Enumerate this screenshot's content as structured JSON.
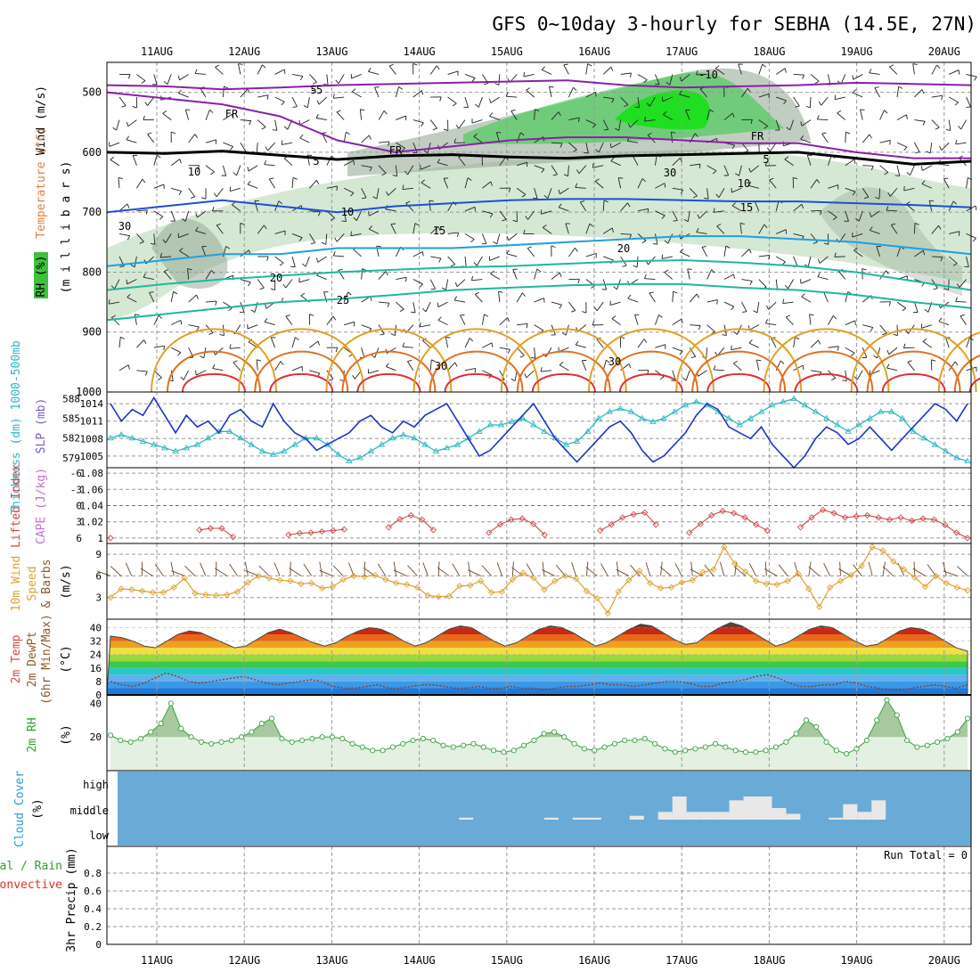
{
  "title": "GFS 0~10day 3-hourly for SEBHA (14.5E, 27N)",
  "colors": {
    "wind_line": "#000000",
    "rh_fill": "#cfe5cf",
    "rh_fill_dark": "#8fa48f",
    "rh_green": "#2ecc40",
    "temp_purple": "#8b1fa8",
    "temp_blue": "#1e4fd0",
    "temp_lightblue": "#1f9fe0",
    "temp_teal": "#1fb7a0",
    "temp_orange": "#e0a020",
    "temp_red": "#e03030",
    "slp": "#1a36c8",
    "thickness": "#2cb8c0",
    "lifted_index": "#d04a4a",
    "wind_speed": "#e0a030",
    "cloud_blue": "#6aaad6",
    "cloud_white": "#e8e8e8",
    "rh2m_fill": "#e4f0e2",
    "rh2m_line": "#3aa040"
  },
  "chart_data": [
    {
      "panel": "upper-air",
      "type": "heatmap",
      "ylabel_left": "Wind (m/s)",
      "ylabel_temperature": "Temperature (°C)",
      "ylabel_rh": "RH (%)",
      "ylabel_pressure": "(m i l l i b a r s)",
      "yticks": [
        500,
        600,
        700,
        800,
        900,
        1000
      ],
      "ylim": [
        450,
        1000
      ],
      "x_dates": [
        "11AUG",
        "12AUG",
        "13AUG",
        "14AUG",
        "15AUG",
        "16AUG",
        "17AUG",
        "18AUG",
        "19AUG",
        "20AUG"
      ],
      "contour_labels": [
        {
          "text": "5",
          "color": "purple"
        },
        {
          "text": "5",
          "color": "purple"
        },
        {
          "text": "-5",
          "color": "purple"
        },
        {
          "text": "-10",
          "color": "purple"
        },
        {
          "text": "5",
          "color": "purple"
        },
        {
          "text": "10",
          "color": "blue"
        },
        {
          "text": "10",
          "color": "blue"
        },
        {
          "text": "15",
          "color": "lightblue"
        },
        {
          "text": "15",
          "color": "lightblue"
        },
        {
          "text": "20",
          "color": "teal"
        },
        {
          "text": "20",
          "color": "teal"
        },
        {
          "text": "25",
          "color": "teal"
        },
        {
          "text": "30",
          "color": "orange"
        },
        {
          "text": "30",
          "color": "orange"
        },
        {
          "text": "FR",
          "color": "black"
        },
        {
          "text": "FR",
          "color": "black"
        },
        {
          "text": "FR",
          "color": "black"
        },
        {
          "text": "30",
          "color": "gray"
        },
        {
          "text": "30",
          "color": "gray"
        },
        {
          "text": "10",
          "color": "gray"
        }
      ],
      "temperature_levels_mb": [
        {
          "temp": 5,
          "p": [
            488,
            490,
            495,
            492,
            488,
            486,
            484,
            482,
            480,
            488,
            492,
            490,
            488,
            484,
            486,
            488
          ]
        },
        {
          "temp": 0,
          "p": [
            600,
            602,
            598,
            605,
            612,
            606,
            604,
            608,
            610,
            606,
            604,
            602,
            600,
            610,
            620,
            615
          ]
        },
        {
          "temp": -5,
          "p": [
            500,
            510,
            520,
            540,
            580,
            600,
            590,
            580,
            575,
            575,
            580,
            585,
            585,
            600,
            610,
            610
          ]
        },
        {
          "temp": 10,
          "p": [
            700,
            690,
            680,
            690,
            700,
            690,
            685,
            680,
            678,
            678,
            680,
            682,
            682,
            685,
            688,
            692
          ]
        },
        {
          "temp": 15,
          "p": [
            790,
            780,
            770,
            770,
            760,
            760,
            760,
            755,
            750,
            745,
            740,
            740,
            745,
            750,
            760,
            770
          ]
        },
        {
          "temp": 20,
          "p": [
            830,
            820,
            812,
            806,
            800,
            796,
            792,
            790,
            786,
            782,
            780,
            784,
            790,
            800,
            815,
            830
          ]
        },
        {
          "temp": 25,
          "p": [
            880,
            870,
            860,
            850,
            845,
            838,
            830,
            826,
            822,
            820,
            820,
            826,
            830,
            838,
            850,
            860
          ]
        }
      ]
    },
    {
      "panel": "slp-thickness",
      "type": "line",
      "ylabel_left": "Thickness (dm) 1000-500mb",
      "ylabel_right": "SLP (mb)",
      "yticks_left": [
        579,
        582,
        585,
        588
      ],
      "yticks_right": [
        1005,
        1008,
        1011,
        1014
      ],
      "ylim_right": [
        1003,
        1016
      ],
      "series": [
        {
          "name": "SLP (mb)",
          "values": [
            1014,
            1011,
            1013,
            1012,
            1015,
            1012,
            1009,
            1012,
            1010,
            1011,
            1009,
            1012,
            1013,
            1011,
            1010,
            1014,
            1011,
            1009,
            1008,
            1006,
            1007,
            1008,
            1009,
            1011,
            1012,
            1010,
            1009,
            1011,
            1010,
            1012,
            1013,
            1014,
            1011,
            1008,
            1005,
            1006,
            1008,
            1010,
            1012,
            1014,
            1011,
            1008,
            1006,
            1004,
            1006,
            1008,
            1010,
            1011,
            1009,
            1006,
            1004,
            1005,
            1007,
            1009,
            1012,
            1014,
            1013,
            1010,
            1009,
            1008,
            1010,
            1007,
            1005,
            1003,
            1005,
            1008,
            1010,
            1009,
            1007,
            1008,
            1010,
            1008,
            1006,
            1008,
            1010,
            1012,
            1014,
            1013,
            1011,
            1014
          ]
        },
        {
          "name": "Thickness (dm)",
          "values": [
            582,
            582.5,
            582,
            581.5,
            581,
            580.5,
            580,
            580.5,
            581,
            582,
            583,
            583,
            582,
            581,
            580,
            579.5,
            580,
            581,
            582,
            582,
            581,
            579.5,
            578.5,
            579,
            580,
            581,
            582,
            582.5,
            582,
            581,
            580,
            580.5,
            581,
            582,
            583,
            584,
            584,
            584.5,
            585,
            584,
            583,
            582,
            581,
            581.5,
            583,
            585,
            586,
            586.5,
            586,
            585,
            584.5,
            585,
            586,
            587,
            587.5,
            587,
            586,
            585,
            584,
            585,
            586,
            587,
            587.5,
            588,
            587,
            586,
            585,
            584,
            583,
            584,
            585,
            586,
            586,
            585,
            583,
            582,
            581,
            580,
            579,
            578.5
          ]
        }
      ]
    },
    {
      "panel": "cape-lifted-index",
      "type": "line",
      "ylabel_left": "Lifted Index",
      "ylabel_right": "CAPE (J/kg)",
      "yticks_left": [
        -6,
        -3,
        0,
        3,
        6
      ],
      "yticks_right": [
        1,
        1.02,
        1.04,
        1.06,
        1.08
      ],
      "ylim": [
        -6,
        6
      ],
      "series": [
        {
          "name": "Lifted Index",
          "values": [
            6,
            null,
            null,
            null,
            null,
            null,
            null,
            null,
            4.5,
            4.2,
            4.2,
            5.8,
            null,
            null,
            null,
            null,
            5.4,
            5.1,
            5.0,
            4.8,
            4.6,
            4.4,
            null,
            null,
            null,
            4.0,
            2.5,
            1.8,
            2.6,
            4.5,
            null,
            null,
            null,
            null,
            5.0,
            3.5,
            2.6,
            2.4,
            3.4,
            5.4,
            null,
            null,
            null,
            null,
            4.6,
            3.5,
            2.2,
            1.6,
            1.3,
            3.5,
            null,
            null,
            5.0,
            3.4,
            1.8,
            1.0,
            1.4,
            2.2,
            3.5,
            4.6,
            null,
            null,
            4.0,
            2.2,
            0.8,
            1.4,
            2.2,
            2.0,
            1.8,
            2.2,
            2.6,
            2.2,
            2.8,
            2.4,
            2.6,
            3.6,
            5.0,
            6
          ]
        }
      ]
    },
    {
      "panel": "10m-wind",
      "type": "line",
      "ylabel_left": "10m Wind Speed & Barbs",
      "ylabel_units": "(m/s)",
      "yticks": [
        3,
        6,
        9
      ],
      "ylim": [
        0,
        10.5
      ],
      "series": [
        {
          "name": "10m Wind Speed",
          "values": [
            3,
            4.2,
            4.1,
            3.9,
            3.7,
            3.7,
            4.4,
            5.7,
            3.6,
            3.4,
            3.3,
            3.4,
            3.8,
            5.1,
            6,
            5.7,
            5.4,
            5.3,
            4.9,
            5.0,
            4.3,
            4.5,
            5.5,
            6,
            5.9,
            6.1,
            5.5,
            5.0,
            4.8,
            4.4,
            3.3,
            3.1,
            3.2,
            4.6,
            4.7,
            5.3,
            3.7,
            3.8,
            5.5,
            6.4,
            5.7,
            4.1,
            5.3,
            6.0,
            5.6,
            3.9,
            2.9,
            0.8,
            3.8,
            5.4,
            6.7,
            5.0,
            4.3,
            4.4,
            5.1,
            5.4,
            6.5,
            6.9,
            10,
            7.7,
            6.6,
            5.3,
            4.9,
            4.8,
            5.3,
            6.3,
            4.2,
            1.7,
            4.4,
            5.3,
            6.1,
            7.4,
            10,
            9.5,
            8,
            6.9,
            5.8,
            4.5,
            6,
            5,
            4.4,
            4
          ]
        }
      ]
    },
    {
      "panel": "2m-temp",
      "type": "area",
      "ylabel": "2m Temp 2m DewPt (6hr Min/Max)",
      "ylabel_units": "(°C)",
      "yticks": [
        0,
        8,
        16,
        24,
        32,
        40
      ],
      "ylim": [
        0,
        45
      ],
      "series": [
        {
          "name": "2m Temp",
          "values": [
            35,
            34,
            32,
            29,
            28,
            32,
            36,
            38,
            37,
            34,
            31,
            28,
            29,
            33,
            37,
            39,
            37,
            34,
            31,
            29,
            31,
            35,
            38,
            40,
            39,
            36,
            32,
            29,
            31,
            35,
            39,
            41,
            40,
            36,
            32,
            29,
            31,
            35,
            39,
            41,
            40,
            37,
            33,
            29,
            31,
            35,
            39,
            42,
            41,
            37,
            33,
            30,
            31,
            36,
            40,
            43,
            41,
            37,
            33,
            29,
            31,
            35,
            39,
            41,
            40,
            36,
            32,
            29,
            30,
            34,
            38,
            40,
            39,
            36,
            32,
            28,
            26
          ]
        },
        {
          "name": "2m DewPt",
          "values": [
            8,
            6,
            5,
            7,
            10,
            13,
            11,
            8,
            7,
            8,
            9,
            10,
            11,
            9,
            7,
            6,
            7,
            8,
            9,
            8,
            5,
            4,
            4,
            5,
            6,
            4,
            4,
            5,
            6,
            6,
            5,
            4,
            4,
            5,
            4,
            4,
            5,
            4,
            4,
            3,
            4,
            5,
            5,
            6,
            7,
            6,
            6,
            5,
            6,
            7,
            8,
            8,
            7,
            5,
            5,
            7,
            8,
            9,
            11,
            12,
            10,
            7,
            5,
            5,
            6,
            6,
            8,
            7,
            5,
            4,
            3,
            3,
            4,
            5,
            6,
            5,
            4,
            6
          ]
        }
      ]
    },
    {
      "panel": "2m-rh",
      "type": "area",
      "ylabel": "2m RH",
      "ylabel_units": "(%)",
      "yticks": [
        20,
        40
      ],
      "ylim": [
        0,
        45
      ],
      "series": [
        {
          "name": "2m RH",
          "values": [
            21,
            18,
            17,
            19,
            23,
            28,
            40,
            25,
            20,
            17,
            16,
            17,
            18,
            20,
            23,
            28,
            31,
            19,
            17,
            18,
            19,
            20,
            20,
            19,
            16,
            14,
            12,
            12,
            14,
            16,
            18,
            19,
            18,
            15,
            14,
            15,
            16,
            14,
            12,
            11,
            12,
            15,
            18,
            22,
            23,
            20,
            16,
            13,
            12,
            14,
            16,
            18,
            18,
            19,
            16,
            13,
            11,
            12,
            13,
            14,
            16,
            14,
            12,
            11,
            11,
            12,
            14,
            17,
            22,
            30,
            26,
            17,
            12,
            10,
            13,
            18,
            30,
            42,
            33,
            18,
            14,
            15,
            17,
            19,
            23,
            31
          ]
        }
      ]
    },
    {
      "panel": "cloud-cover",
      "type": "bar",
      "ylabel": "Cloud Cover (%)",
      "yticks": [
        "low",
        "middle",
        "high"
      ],
      "note": "middle-level cloud blocks between 14AUG and 18AUG",
      "middle_cover": [
        0,
        0,
        0,
        0,
        0,
        0,
        0,
        0,
        0,
        0,
        0,
        0,
        0,
        0,
        0,
        0,
        0,
        0,
        0,
        0,
        0,
        0,
        0,
        0,
        5,
        0,
        0,
        0,
        0,
        0,
        5,
        0,
        5,
        5,
        0,
        0,
        10,
        0,
        20,
        60,
        20,
        20,
        20,
        50,
        60,
        60,
        30,
        15,
        0,
        0,
        5,
        40,
        20,
        50,
        0,
        0,
        0,
        0,
        0,
        0
      ]
    },
    {
      "panel": "precip",
      "type": "bar",
      "ylabel_left": "Total / Rain Convective",
      "ylabel_units": "3hr Precip (mm)",
      "yticks": [
        0,
        0.2,
        0.4,
        0.6,
        0.8
      ],
      "ylim": [
        0,
        1
      ],
      "run_total": "Run Total = 0",
      "values": []
    }
  ],
  "axis_labels": {
    "pressure": "(m i l l i b a r s)",
    "rh": "RH (%)",
    "temperature": "Temperature (°C)",
    "wind": "Wind (m/s)",
    "thickness": "Thickness (dm) 1000-500mb",
    "slp": "SLP (mb)",
    "lifted": "Lifted Index",
    "cape": "CAPE (J/kg)",
    "wind10m": "10m Wind",
    "speed": "Speed",
    "barbs": "& Barbs",
    "ms": "(m/s)",
    "temp2m": "2m Temp",
    "dewpt2m": "2m DewPt",
    "minmax": "(6hr Min/Max)",
    "degc": "(°C)",
    "rh2m": "2m RH",
    "pct": "(%)",
    "cloud_cover": "Cloud Cover",
    "cloud_pct": "(%)",
    "cloud_high": "high",
    "cloud_middle": "middle",
    "cloud_low": "low",
    "total_rain": "tal / Rain",
    "convective": "Convective",
    "precip": "3hr Precip (mm)",
    "run_total": "Run Total = 0"
  }
}
